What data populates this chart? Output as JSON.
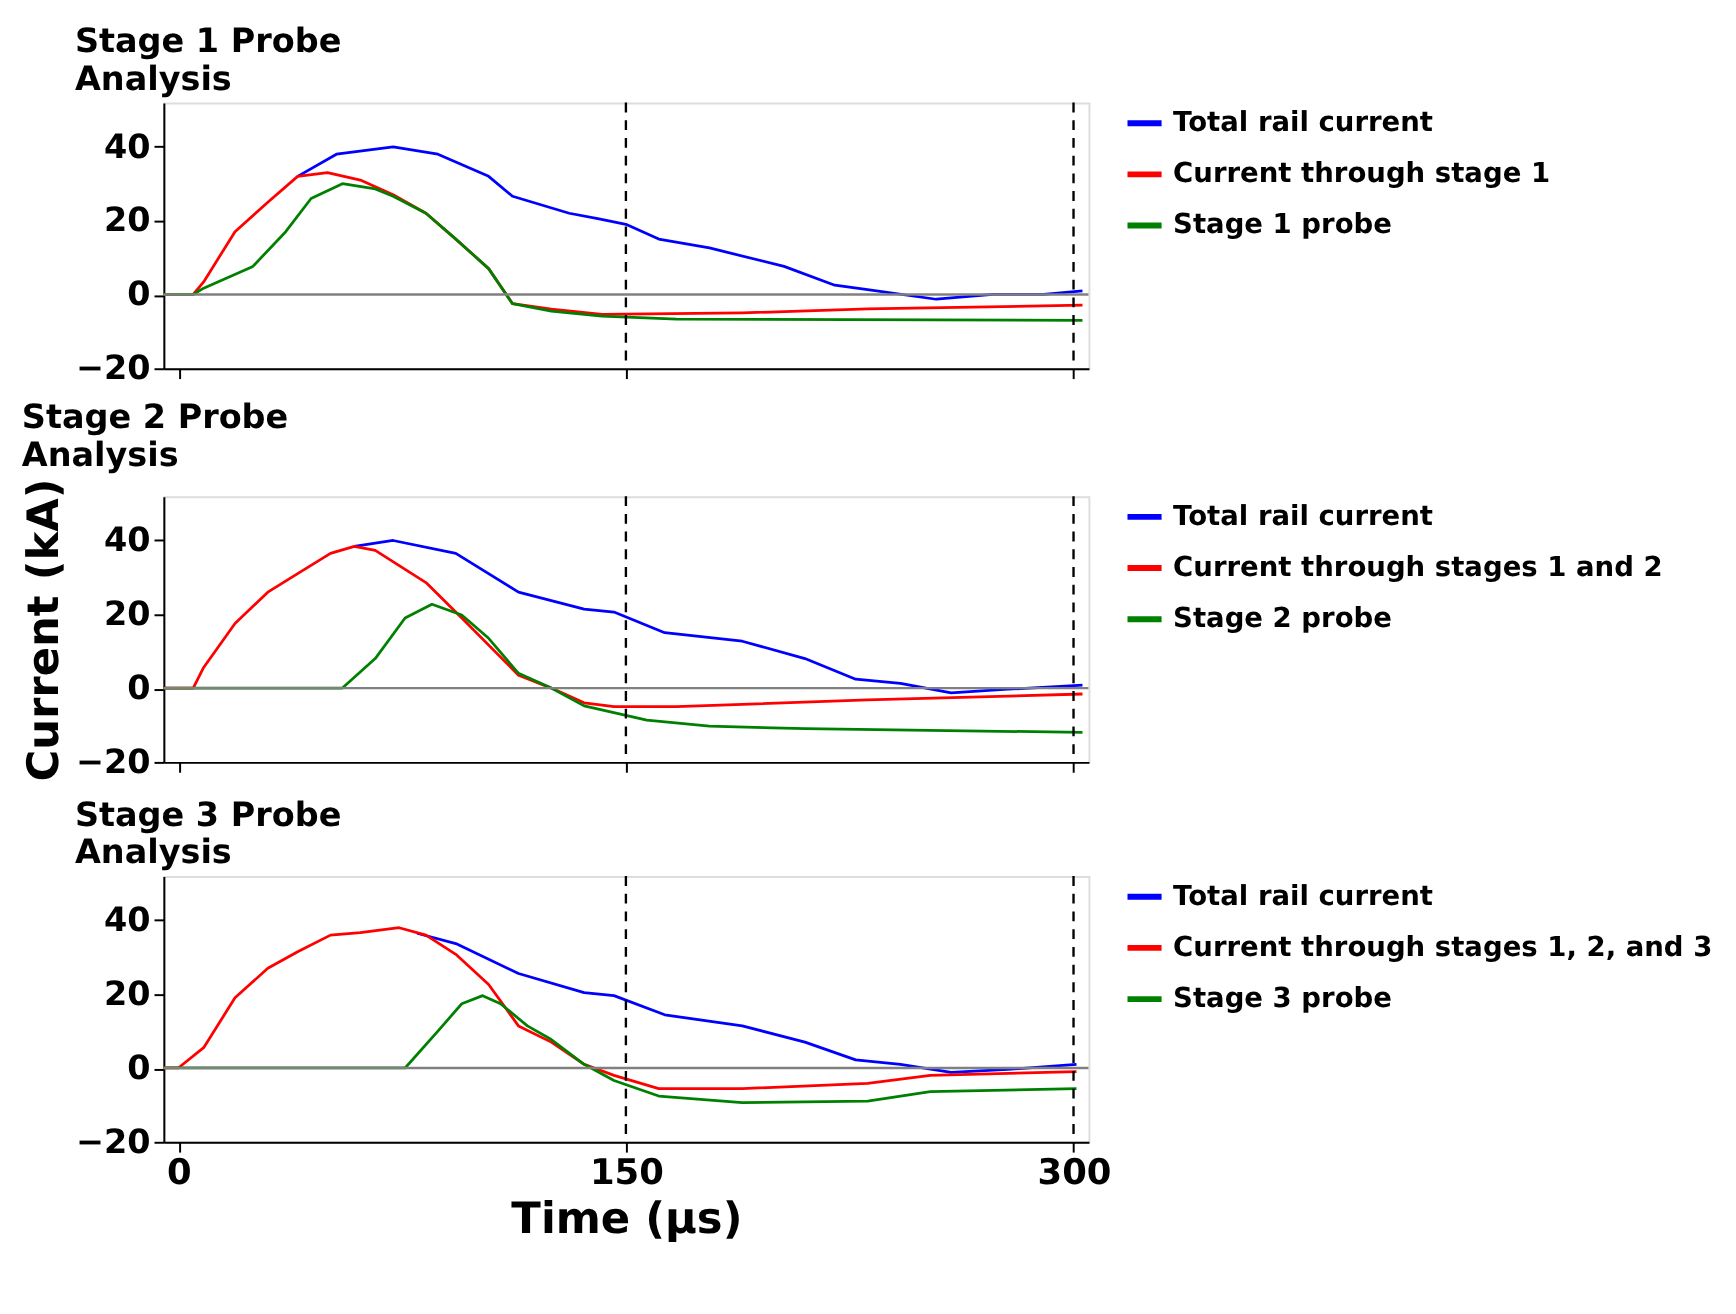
{
  "chart_data": [
    {
      "type": "line",
      "title": "Stage 1 Probe Analysis",
      "xlim": [
        -5,
        305
      ],
      "xticks": [
        0,
        150,
        300
      ],
      "ylim": [
        -20,
        52
      ],
      "yticks": [
        -20,
        0,
        20,
        40
      ],
      "grid": false,
      "legend": "right",
      "tick_labels": "y",
      "line_style": "solid",
      "marker": "none",
      "ref_lines": [
        {
          "axis": "x",
          "value": 150,
          "color": "#000000",
          "line_style": "dashed"
        },
        {
          "axis": "x",
          "value": 300,
          "color": "#000000",
          "line_style": "dashed"
        },
        {
          "axis": "y",
          "value": 0,
          "color": "#808080",
          "line_style": "solid"
        }
      ],
      "series": [
        {
          "name": "Total rail current",
          "color": "#0000ff",
          "x": [
            40,
            53,
            72,
            87,
            104,
            112,
            131,
            141,
            150,
            161,
            178,
            203,
            220,
            231,
            254,
            273,
            290,
            303
          ],
          "values": [
            32,
            38,
            40,
            38,
            32,
            26.6,
            22,
            20.5,
            19,
            15,
            12.6,
            7.6,
            2.5,
            1.3,
            -1.3,
            0,
            0,
            1
          ]
        },
        {
          "name": "Current through stage 1",
          "color": "#ff0000",
          "x": [
            -5,
            5,
            8.5,
            19,
            30,
            40,
            50,
            61,
            72,
            83,
            93,
            104,
            112,
            125,
            142,
            189,
            231,
            303
          ],
          "values": [
            0,
            0,
            3.4,
            17,
            25,
            32,
            33,
            31,
            27,
            22,
            15,
            7,
            -2.5,
            -4,
            -5.4,
            -5,
            -3.9,
            -2.9
          ]
        },
        {
          "name": "Stage 1 probe",
          "color": "#008000",
          "x": [
            -5,
            5,
            8.5,
            25,
            36,
            44.5,
            55,
            66,
            72,
            83,
            93,
            104,
            112,
            125,
            142,
            167,
            303
          ],
          "values": [
            0,
            0,
            1.7,
            7.6,
            17,
            26,
            30,
            28.6,
            26.6,
            22,
            15,
            7,
            -2.5,
            -4.5,
            -5.9,
            -6.7,
            -7
          ]
        }
      ]
    },
    {
      "type": "line",
      "title": "Stage 2 Probe Analysis",
      "ylabel": "Current (kA)",
      "xlim": [
        -5,
        305
      ],
      "xticks": [
        0,
        150,
        300
      ],
      "ylim": [
        -20,
        52
      ],
      "yticks": [
        -20,
        0,
        20,
        40
      ],
      "grid": false,
      "legend": "right",
      "tick_labels": "y",
      "line_style": "solid",
      "marker": "none",
      "ref_lines": [
        {
          "axis": "x",
          "value": 150,
          "color": "#000000",
          "line_style": "dashed"
        },
        {
          "axis": "x",
          "value": 300,
          "color": "#000000",
          "line_style": "dashed"
        },
        {
          "axis": "y",
          "value": 0,
          "color": "#808080",
          "line_style": "solid"
        }
      ],
      "series": [
        {
          "name": "Total rail current",
          "color": "#0000ff",
          "x": [
            59,
            72,
            93,
            114,
            136,
            146,
            163,
            189,
            210,
            227,
            242,
            259,
            278,
            303
          ],
          "values": [
            38.4,
            40,
            36.5,
            26,
            21.4,
            20.6,
            15,
            12.7,
            8,
            2.4,
            1.3,
            -1.3,
            -0.3,
            0.8
          ]
        },
        {
          "name": "Current through stages 1 and 2",
          "color": "#ff0000",
          "x": [
            -5,
            5,
            8.5,
            19,
            30,
            40,
            51,
            59,
            66,
            83,
            95,
            114,
            125,
            136,
            146,
            167,
            231,
            303
          ],
          "values": [
            0,
            0,
            5.6,
            17.5,
            26,
            31,
            36.5,
            38.4,
            37.3,
            28.6,
            19,
            3.5,
            0,
            -4,
            -5,
            -5,
            -3.2,
            -1.6
          ]
        },
        {
          "name": "Stage 2 probe",
          "color": "#008000",
          "x": [
            -5,
            55,
            66,
            76,
            85,
            95,
            104,
            114,
            125,
            136,
            157,
            178,
            210,
            303
          ],
          "values": [
            0,
            0,
            8,
            19,
            22.7,
            19.8,
            13.5,
            4,
            0,
            -4.8,
            -8.7,
            -10.3,
            -11,
            -12
          ]
        }
      ]
    },
    {
      "type": "line",
      "title": "Stage 3 Probe Analysis",
      "xlabel": "Time (µs)",
      "xlim": [
        -5,
        305
      ],
      "xticks": [
        0,
        150,
        300
      ],
      "ylim": [
        -20,
        52
      ],
      "yticks": [
        -20,
        0,
        20,
        40
      ],
      "grid": false,
      "legend": "right",
      "line_style": "solid",
      "marker": "none",
      "ref_lines": [
        {
          "axis": "x",
          "value": 150,
          "color": "#000000",
          "line_style": "dashed"
        },
        {
          "axis": "x",
          "value": 300,
          "color": "#000000",
          "line_style": "dashed"
        },
        {
          "axis": "y",
          "value": 0,
          "color": "#808080",
          "line_style": "solid"
        }
      ],
      "series": [
        {
          "name": "Total rail current",
          "color": "#0000ff",
          "x": [
            80,
            93,
            114,
            136,
            146,
            163,
            189,
            210,
            227,
            242,
            259,
            278,
            301
          ],
          "values": [
            36.5,
            33.7,
            25.6,
            20.4,
            19.6,
            14.4,
            11.4,
            7,
            2.2,
            1,
            -1.2,
            -0.4,
            1
          ]
        },
        {
          "name": "Current through stages 1, 2, and 3",
          "color": "#ff0000",
          "x": [
            -5,
            0,
            8.5,
            19,
            30,
            40,
            51,
            61,
            74,
            83,
            93,
            104,
            114,
            125,
            136,
            146,
            161,
            189,
            231,
            252,
            301
          ],
          "values": [
            0,
            0,
            5.5,
            19,
            27,
            31.5,
            36,
            36.7,
            38,
            36,
            30.8,
            22.6,
            11.4,
            7,
            1,
            -2,
            -5.6,
            -5.6,
            -4.2,
            -2,
            -1
          ]
        },
        {
          "name": "Stage 3 probe",
          "color": "#008000",
          "x": [
            -5,
            76,
            87,
            95,
            102,
            108,
            117,
            125,
            136,
            146,
            161,
            189,
            231,
            252,
            301
          ],
          "values": [
            0,
            0,
            10,
            17.4,
            19.6,
            17.4,
            11.4,
            7.7,
            1,
            -3.4,
            -7.6,
            -9.4,
            -9,
            -6.4,
            -5.6
          ]
        }
      ]
    }
  ]
}
